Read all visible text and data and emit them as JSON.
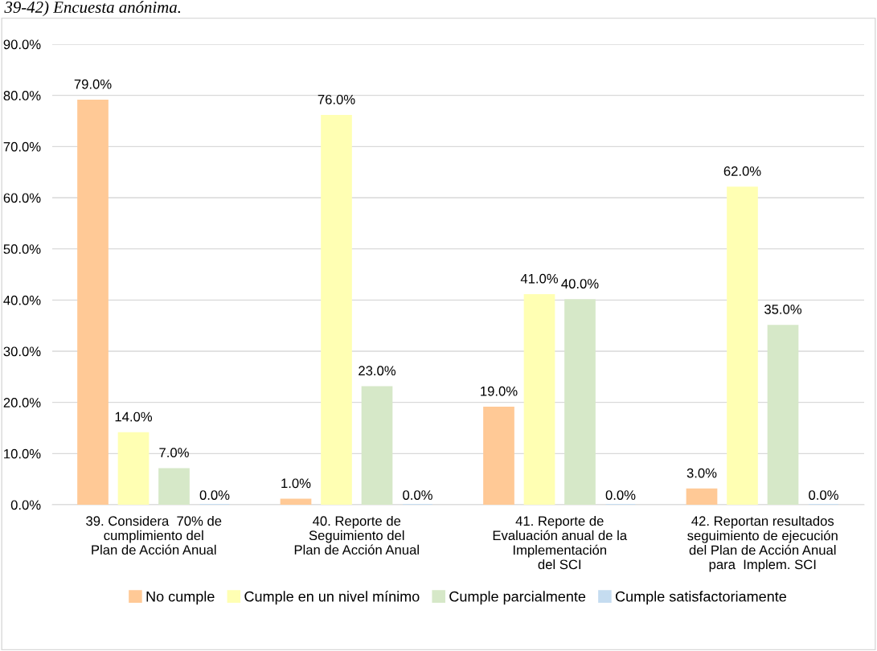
{
  "chart_data": {
    "type": "bar",
    "annotations": [
      "39-42) Encuesta anónima."
    ],
    "categories": [
      "39. Considera  70% de\ncumplimiento del\nPlan de Acción Anual",
      "40. Reporte de\nSeguimiento del\nPlan de Acción Anual",
      "41. Reporte de\nEvaluación anual de la\nImplementación\ndel SCI",
      "42. Reportan resultados\nseguimiento de ejecución\ndel Plan de Acción Anual\npara  Implem. SCI"
    ],
    "series": [
      {
        "name": "No cumple",
        "color": "#ffc996",
        "values": [
          79.0,
          1.0,
          19.0,
          3.0
        ],
        "value_labels": [
          "79.0%",
          "1.0%",
          "19.0%",
          "3.0%"
        ]
      },
      {
        "name": "Cumple en un nivel mínimo",
        "color": "#ffffb3",
        "values": [
          14.0,
          76.0,
          41.0,
          62.0
        ],
        "value_labels": [
          "14.0%",
          "76.0%",
          "41.0%",
          "62.0%"
        ]
      },
      {
        "name": "Cumple parcialmente",
        "color": "#d6e8c8",
        "values": [
          7.0,
          23.0,
          40.0,
          35.0
        ],
        "value_labels": [
          "7.0%",
          "23.0%",
          "40.0%",
          "35.0%"
        ]
      },
      {
        "name": "Cumple satisfactoriamente",
        "color": "#c5dcf0",
        "values": [
          0.0,
          0.0,
          0.0,
          0.0
        ],
        "value_labels": [
          "0.0%",
          "0.0%",
          "0.0%",
          "0.0%"
        ]
      }
    ],
    "ylim": [
      0,
      90
    ],
    "yticks": [
      {
        "value": 0,
        "label": "0.0%"
      },
      {
        "value": 10,
        "label": "10.0%"
      },
      {
        "value": 20,
        "label": "20.0%"
      },
      {
        "value": 30,
        "label": "30.0%"
      },
      {
        "value": 40,
        "label": "40.0%"
      },
      {
        "value": 50,
        "label": "50.0%"
      },
      {
        "value": 60,
        "label": "60.0%"
      },
      {
        "value": 70,
        "label": "70.0%"
      },
      {
        "value": 80,
        "label": "80.0%"
      },
      {
        "value": 90,
        "label": "90.0%"
      }
    ],
    "grid": "y",
    "legend": "bottom"
  }
}
